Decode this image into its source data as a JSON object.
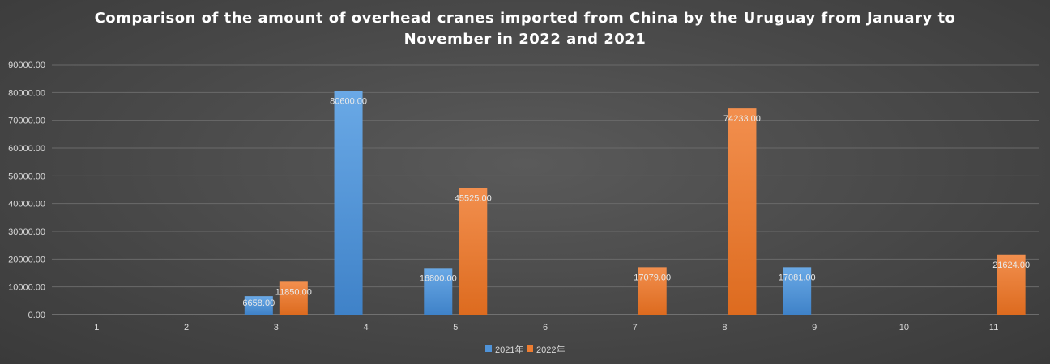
{
  "chart_data": {
    "type": "bar",
    "title_line1": "Comparison of the amount of overhead cranes imported from China by the Uruguay from January to",
    "title_line2": "November in 2022 and 2021",
    "xlabel": "",
    "ylabel": "",
    "categories": [
      "1",
      "2",
      "3",
      "4",
      "5",
      "6",
      "7",
      "8",
      "9",
      "10",
      "11"
    ],
    "series": [
      {
        "name": "2021年",
        "color": "#4f93d8",
        "values": [
          0,
          0,
          6658,
          80600,
          16800,
          0,
          0,
          0,
          17081,
          0,
          0
        ],
        "labels": [
          "",
          "",
          "6658.00",
          "80600.00",
          "16800.00",
          "",
          "",
          "",
          "17081.00",
          "",
          ""
        ]
      },
      {
        "name": "2022年",
        "color": "#ee7d31",
        "values": [
          0,
          0,
          11850,
          0,
          45525,
          0,
          17079,
          74233,
          0,
          0,
          21624
        ],
        "labels": [
          "",
          "",
          "11850.00",
          "",
          "45525.00",
          "",
          "17079.00",
          "74233.00",
          "",
          "",
          "21624.00"
        ]
      }
    ],
    "ylim": [
      0,
      90000
    ],
    "yticks": [
      "0.00",
      "10000.00",
      "20000.00",
      "30000.00",
      "40000.00",
      "50000.00",
      "60000.00",
      "70000.00",
      "80000.00",
      "90000.00"
    ],
    "grid": true,
    "legend_position": "bottom"
  }
}
